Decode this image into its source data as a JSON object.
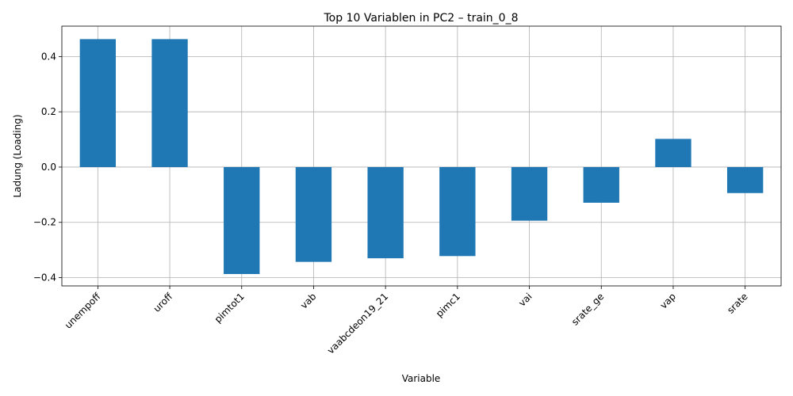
{
  "chart_data": {
    "type": "bar",
    "title": "Top 10 Variablen in PC2 – train_0_8",
    "xlabel": "Variable",
    "ylabel": "Ladung (Loading)",
    "categories": [
      "unempoff",
      "uroff",
      "pimtot1",
      "vab",
      "vaabcdeon19_21",
      "pimc1",
      "vai",
      "srate_ge",
      "vap",
      "srate"
    ],
    "values": [
      0.463,
      0.463,
      -0.387,
      -0.343,
      -0.33,
      -0.322,
      -0.194,
      -0.129,
      0.102,
      -0.094
    ],
    "ylim": [
      -0.43,
      0.51
    ],
    "yticks": [
      -0.4,
      -0.2,
      0.0,
      0.2,
      0.4
    ],
    "ytick_labels": [
      "−0.4",
      "−0.2",
      "0.0",
      "0.2",
      "0.4"
    ],
    "grid": true,
    "bar_color": "#1f77b4"
  }
}
